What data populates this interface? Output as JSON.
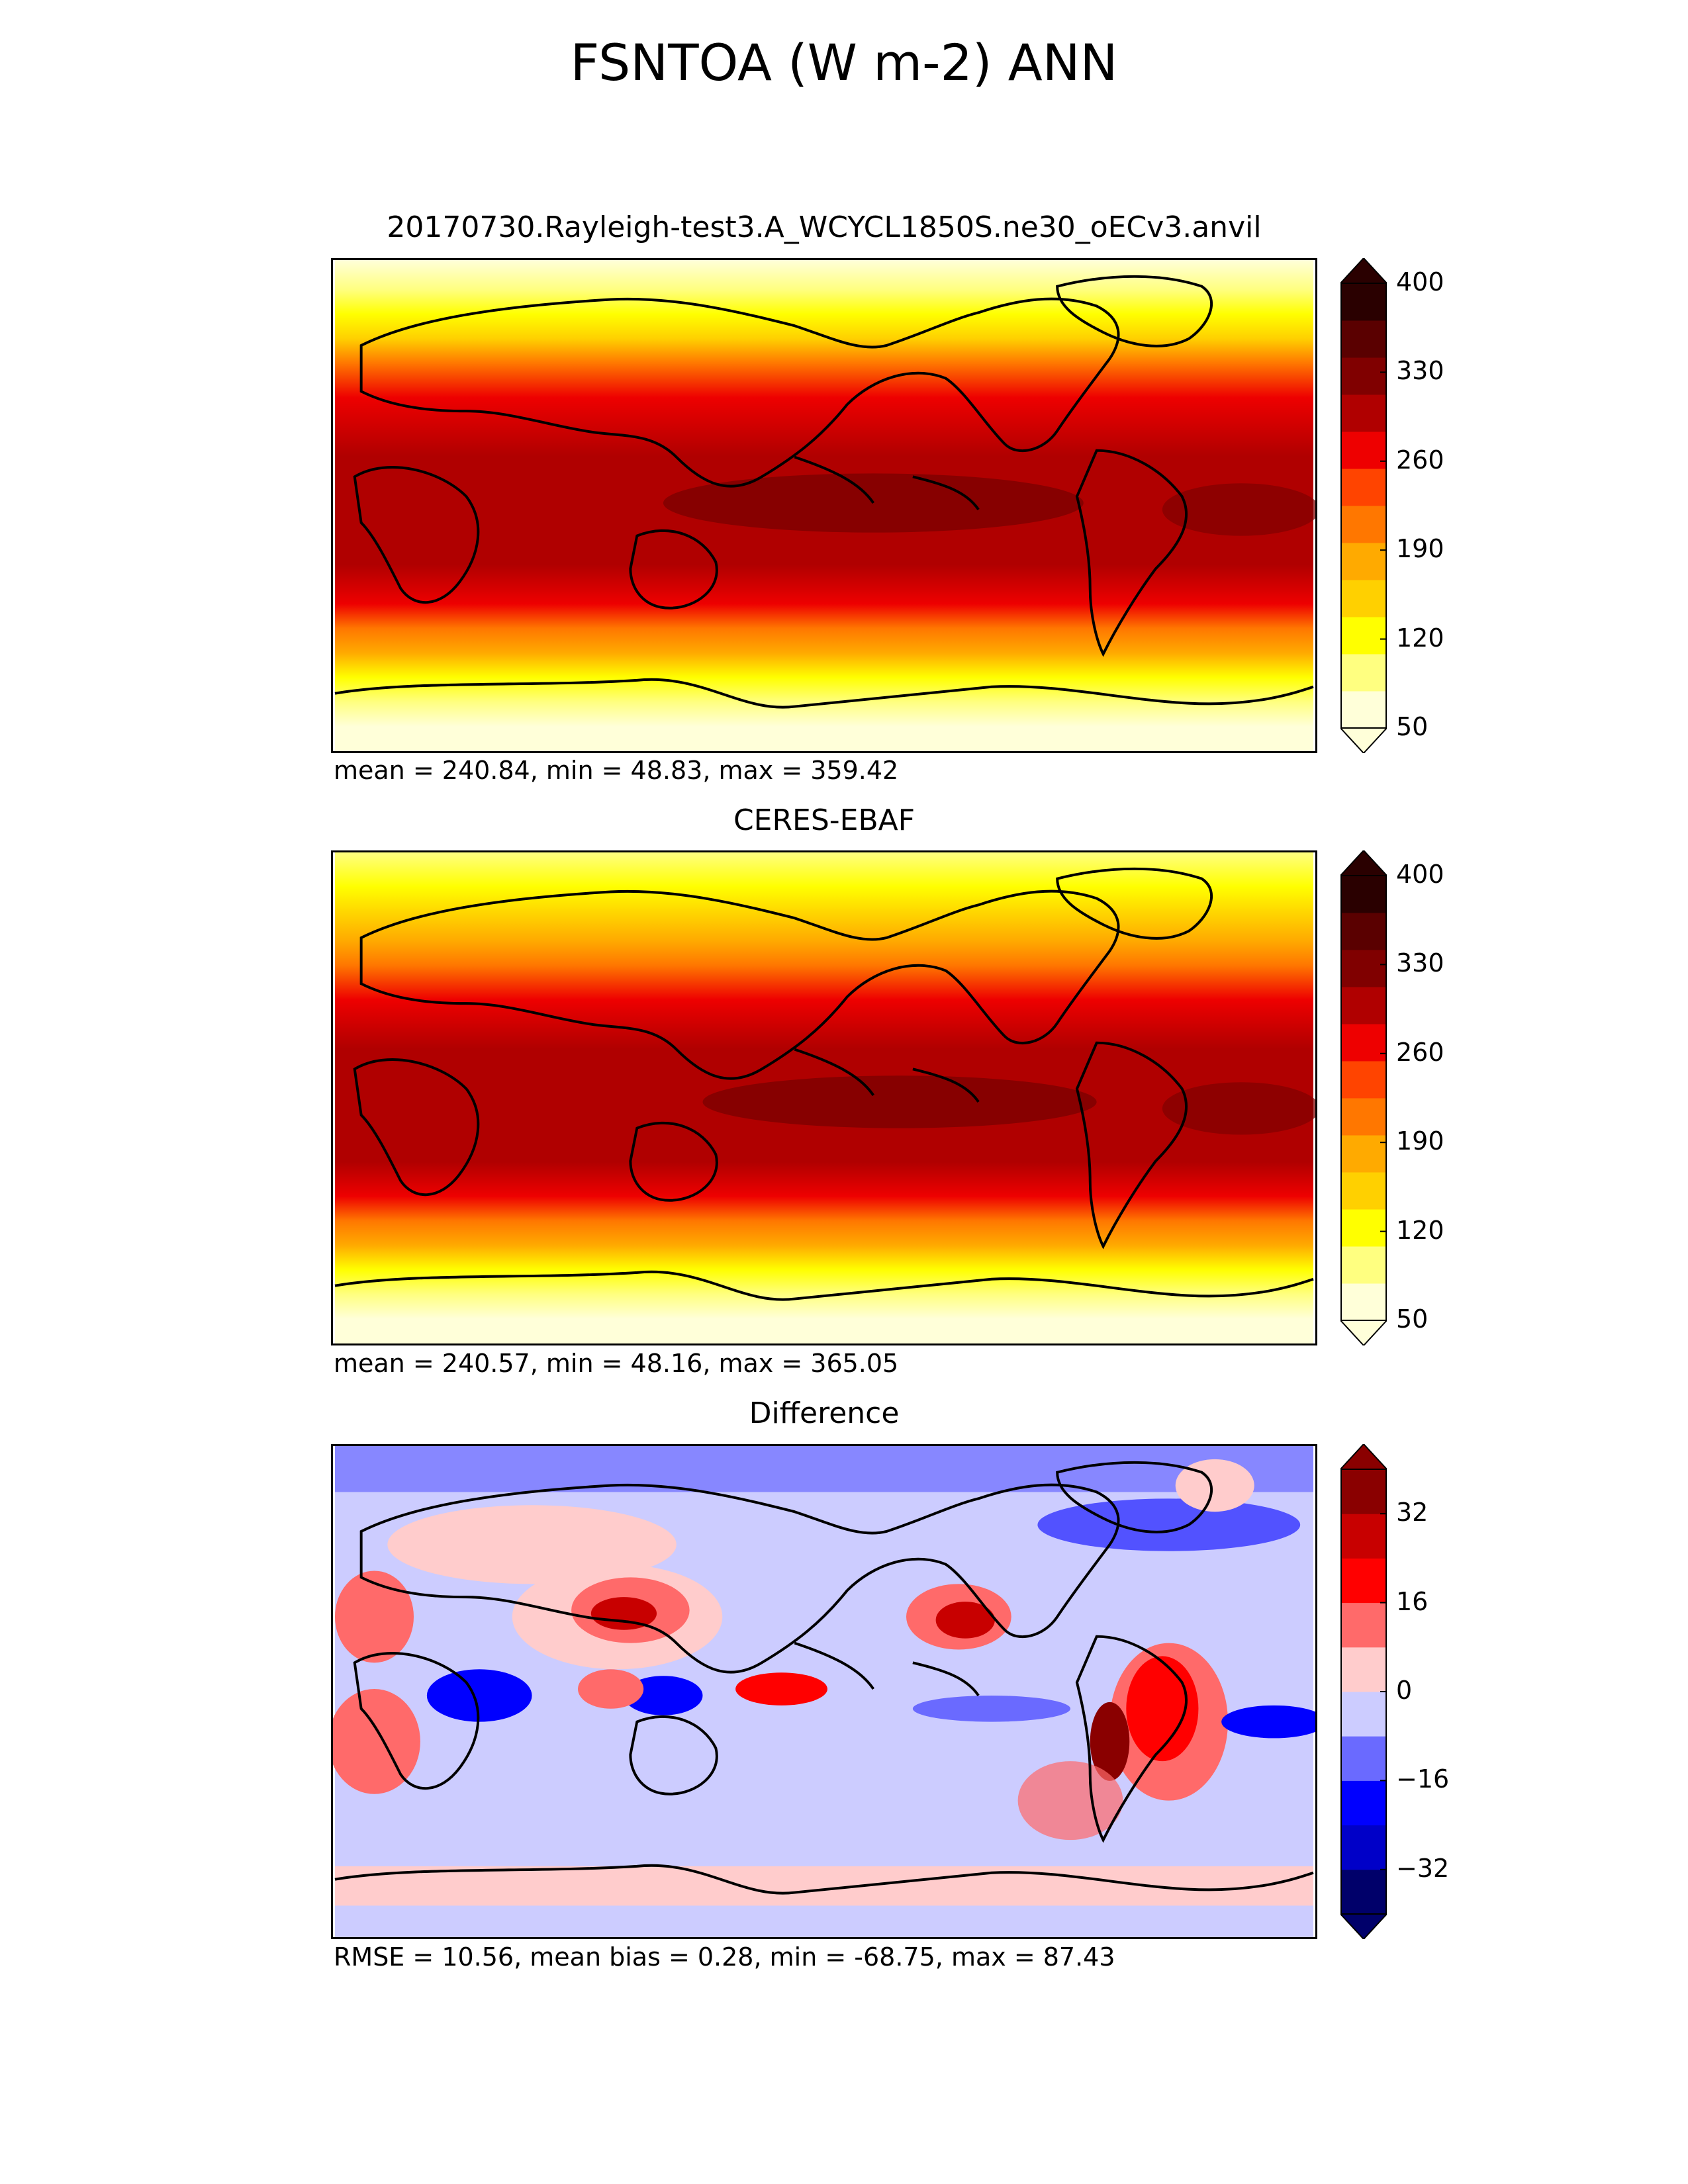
{
  "figure": {
    "title": "FSNTOA (W m-2) ANN"
  },
  "chart_data": [
    {
      "type": "heatmap",
      "title": "20170730.Rayleigh-test3.A_WCYCL1850S.ne30_oECv3.anvil",
      "stats_text": "mean = 240.84, min = 48.83, max = 359.42",
      "colorbar": {
        "ticks": [
          "400",
          "330",
          "260",
          "190",
          "120",
          "50"
        ],
        "levels": [
          50,
          400
        ],
        "colors": [
          "#ffffd9",
          "#ffff80",
          "#ffff00",
          "#ffd000",
          "#ffaa00",
          "#ff7700",
          "#ff4400",
          "#ee0000",
          "#b00000",
          "#800000",
          "#5a0000",
          "#2a0000"
        ]
      }
    },
    {
      "type": "heatmap",
      "title": "CERES-EBAF",
      "stats_text": "mean = 240.57, min = 48.16, max = 365.05",
      "colorbar": {
        "ticks": [
          "400",
          "330",
          "260",
          "190",
          "120",
          "50"
        ],
        "levels": [
          50,
          400
        ],
        "colors": [
          "#ffffd9",
          "#ffff80",
          "#ffff00",
          "#ffd000",
          "#ffaa00",
          "#ff7700",
          "#ff4400",
          "#ee0000",
          "#b00000",
          "#800000",
          "#5a0000",
          "#2a0000"
        ]
      }
    },
    {
      "type": "heatmap",
      "title": "Difference",
      "stats_text": "RMSE = 10.56, mean bias = 0.28, min = -68.75, max = 87.43",
      "colorbar": {
        "ticks": [
          "32",
          "16",
          "0",
          "−16",
          "−32"
        ],
        "levels": [
          -40,
          40
        ],
        "colors": [
          "#00006a",
          "#0000c8",
          "#0000ff",
          "#6a6aff",
          "#ccccff",
          "#ffcccc",
          "#ff6a6a",
          "#ff0000",
          "#c80000",
          "#8a0000"
        ]
      }
    }
  ]
}
